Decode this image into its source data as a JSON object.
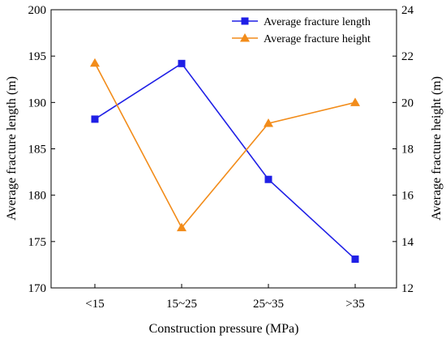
{
  "chart_data": {
    "type": "line",
    "categories": [
      "<15",
      "15~25",
      "25~35",
      ">35"
    ],
    "xlabel": "Construction pressure (MPa)",
    "ylabel_left": "Average fracture length (m)",
    "ylabel_right": "Average fracture height (m)",
    "ylim_left": [
      170,
      200
    ],
    "yticks_left": [
      "170",
      "175",
      "180",
      "185",
      "190",
      "195",
      "200"
    ],
    "ylim_right": [
      12,
      24
    ],
    "yticks_right": [
      "12",
      "14",
      "16",
      "18",
      "20",
      "22",
      "24"
    ],
    "grid": false,
    "legend_position": "top-right",
    "series": [
      {
        "name": "Average fracture length",
        "axis": "left",
        "values": [
          188.2,
          194.2,
          181.7,
          173.1
        ],
        "color": "#1f1fe6",
        "marker": "square"
      },
      {
        "name": "Average fracture height",
        "axis": "right",
        "values": [
          21.7,
          14.6,
          19.1,
          20.0
        ],
        "color": "#f28c1a",
        "marker": "triangle"
      }
    ]
  }
}
